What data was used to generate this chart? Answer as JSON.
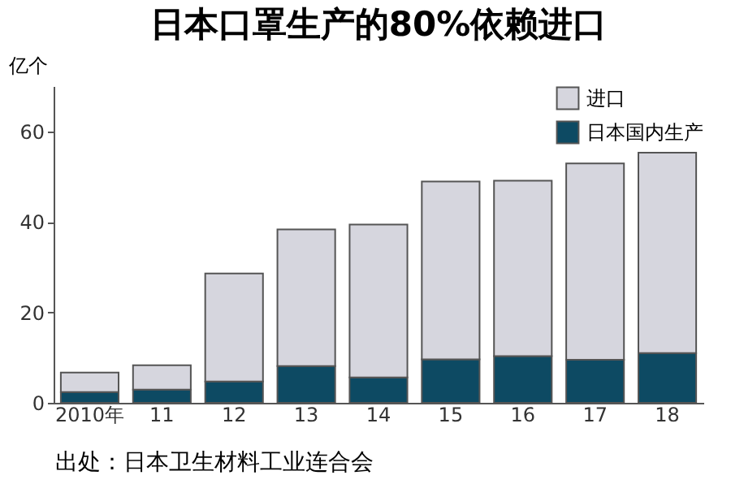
{
  "chart_data": {
    "type": "bar",
    "title": "日本口罩生产的80%依赖进口",
    "ylabel": "亿个",
    "categories": [
      "2010年",
      "11",
      "12",
      "13",
      "14",
      "15",
      "16",
      "17",
      "18"
    ],
    "stacked": true,
    "ylim": [
      0,
      70
    ],
    "yticks": [
      0,
      20,
      40,
      60
    ],
    "grid": false,
    "legend": "top right",
    "annotations": [
      "出处：日本卫生材料工业连合会"
    ],
    "series": [
      {
        "name": "日本国内生产",
        "color": "#0d4a63",
        "values": [
          2.4,
          2.9,
          4.7,
          8.1,
          5.6,
          9.6,
          10.3,
          9.5,
          11.0
        ]
      },
      {
        "name": "进口",
        "color": "#d6d6de",
        "values": [
          4.3,
          5.4,
          23.9,
          30.2,
          33.8,
          39.3,
          38.8,
          43.4,
          44.3
        ]
      }
    ]
  }
}
